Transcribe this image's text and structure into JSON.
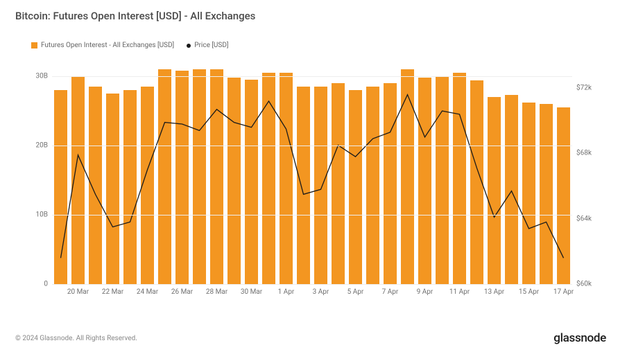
{
  "title": "Bitcoin: Futures Open Interest [USD] - All Exchanges",
  "legend": {
    "oi": "Futures Open Interest - All Exchanges [USD]",
    "price": "Price [USD]"
  },
  "footer": {
    "copyright": "© 2024 Glassnode. All Rights Reserved.",
    "brand": "glassnode"
  },
  "chart": {
    "type": "bar+line",
    "background_color": "#ffffff",
    "grid_color": "#eeeeee",
    "bar_color": "#f39621",
    "line_color": "#1a1a1a",
    "line_width": 1.3,
    "bar_width_ratio": 0.78,
    "title_fontsize": 15,
    "axis_fontsize": 10,
    "y_left": {
      "min": 0,
      "max": 33,
      "ticks": [
        0,
        10,
        20,
        30
      ],
      "tick_labels": [
        "0",
        "10B",
        "20B",
        "30B"
      ]
    },
    "y_right": {
      "min": 60,
      "max": 74,
      "ticks": [
        60,
        64,
        68,
        72
      ],
      "tick_labels": [
        "$60k",
        "$64k",
        "$68k",
        "$72k"
      ]
    },
    "x_labels": [
      "20 Mar",
      "22 Mar",
      "24 Mar",
      "26 Mar",
      "28 Mar",
      "30 Mar",
      "1 Apr",
      "3 Apr",
      "5 Apr",
      "7 Apr",
      "9 Apr",
      "11 Apr",
      "13 Apr",
      "15 Apr",
      "17 Apr"
    ],
    "dates": [
      "19 Mar",
      "20 Mar",
      "21 Mar",
      "22 Mar",
      "23 Mar",
      "24 Mar",
      "25 Mar",
      "26 Mar",
      "27 Mar",
      "28 Mar",
      "29 Mar",
      "30 Mar",
      "31 Mar",
      "1 Apr",
      "2 Apr",
      "3 Apr",
      "4 Apr",
      "5 Apr",
      "6 Apr",
      "7 Apr",
      "8 Apr",
      "9 Apr",
      "10 Apr",
      "11 Apr",
      "12 Apr",
      "13 Apr",
      "14 Apr",
      "15 Apr",
      "16 Apr",
      "17 Apr"
    ],
    "oi_billion": [
      28.0,
      30.0,
      28.5,
      27.5,
      28.0,
      28.5,
      31.0,
      30.8,
      31.0,
      31.0,
      29.8,
      29.5,
      30.5,
      30.5,
      28.5,
      28.5,
      29.0,
      28.0,
      28.5,
      29.0,
      31.0,
      29.8,
      30.0,
      30.5,
      29.4,
      27.0,
      27.3,
      26.2,
      26.0,
      25.5
    ],
    "price_k": [
      61.6,
      67.9,
      65.5,
      63.5,
      63.8,
      67.0,
      69.9,
      69.8,
      69.4,
      70.7,
      69.9,
      69.6,
      71.2,
      69.5,
      65.5,
      65.8,
      68.5,
      67.8,
      68.9,
      69.3,
      71.6,
      69.0,
      70.6,
      70.4,
      67.1,
      64.1,
      65.7,
      63.4,
      63.8,
      61.6
    ]
  }
}
